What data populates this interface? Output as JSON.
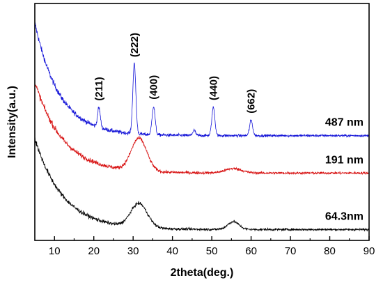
{
  "chart_data": {
    "type": "line",
    "xlabel": "2theta(deg.)",
    "ylabel": "Intensity(a.u.)",
    "xlim": [
      5,
      90
    ],
    "x_ticks": [
      10,
      20,
      30,
      40,
      50,
      60,
      70,
      80,
      90
    ],
    "y_ticks_shown": false,
    "grid": false,
    "legend": "none (series labeled directly on the right)",
    "series": [
      {
        "name": "487 nm",
        "color": "#1515d8",
        "baseline": 0.86,
        "decay_amp": 2.6,
        "decay_rate": 0.16,
        "noise": 0.08,
        "peaks": [
          {
            "x": 21.3,
            "height": 0.45,
            "width": 0.5
          },
          {
            "x": 30.3,
            "height": 1.6,
            "width": 0.55
          },
          {
            "x": 35.2,
            "height": 0.65,
            "width": 0.55
          },
          {
            "x": 45.5,
            "height": 0.12,
            "width": 0.5
          },
          {
            "x": 50.4,
            "height": 0.65,
            "width": 0.55
          },
          {
            "x": 60.0,
            "height": 0.35,
            "width": 0.55
          }
        ]
      },
      {
        "name": "191 nm",
        "color": "#d81515",
        "baseline": 0.0,
        "decay_amp": 2.1,
        "decay_rate": 0.14,
        "noise": 0.08,
        "peaks": [
          {
            "x": 31.5,
            "height": 0.75,
            "width": 2.8
          },
          {
            "x": 55.5,
            "height": 0.1,
            "width": 3.0
          }
        ]
      },
      {
        "name": "64.3nm",
        "color": "#000000",
        "baseline": -1.3,
        "decay_amp": 2.1,
        "decay_rate": 0.14,
        "noise": 0.07,
        "peaks": [
          {
            "x": 31.5,
            "height": 0.55,
            "width": 3.0
          },
          {
            "x": 55.5,
            "height": 0.18,
            "width": 2.0
          }
        ]
      }
    ],
    "ylim": [
      -1.55,
      3.9
    ],
    "peak_annotations": [
      {
        "label": "(211)",
        "x": 21.3
      },
      {
        "label": "(222)",
        "x": 30.3
      },
      {
        "label": "(400)",
        "x": 35.2
      },
      {
        "label": "(440)",
        "x": 50.4
      },
      {
        "label": "(662)",
        "x": 60.0
      }
    ]
  }
}
